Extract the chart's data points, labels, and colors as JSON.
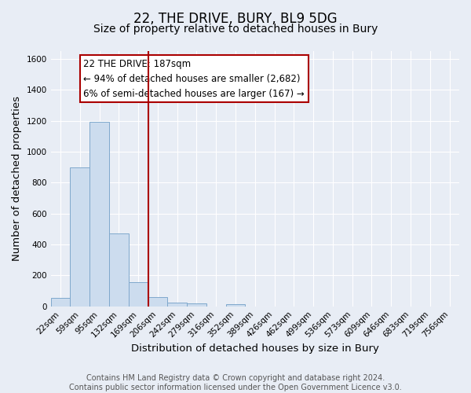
{
  "title": "22, THE DRIVE, BURY, BL9 5DG",
  "subtitle": "Size of property relative to detached houses in Bury",
  "xlabel": "Distribution of detached houses by size in Bury",
  "ylabel": "Number of detached properties",
  "bin_labels": [
    "22sqm",
    "59sqm",
    "95sqm",
    "132sqm",
    "169sqm",
    "206sqm",
    "242sqm",
    "279sqm",
    "316sqm",
    "352sqm",
    "389sqm",
    "426sqm",
    "462sqm",
    "499sqm",
    "536sqm",
    "573sqm",
    "609sqm",
    "646sqm",
    "683sqm",
    "719sqm",
    "756sqm"
  ],
  "bar_values": [
    55,
    900,
    1195,
    470,
    155,
    60,
    25,
    20,
    0,
    15,
    0,
    0,
    0,
    0,
    0,
    0,
    0,
    0,
    0,
    0,
    0
  ],
  "ylim": [
    0,
    1650
  ],
  "yticks": [
    0,
    200,
    400,
    600,
    800,
    1000,
    1200,
    1400,
    1600
  ],
  "bar_color": "#ccdcee",
  "bar_edge_color": "#7fa8cc",
  "background_color": "#e8edf5",
  "vline_x_index": 5,
  "vline_color": "#aa0000",
  "annotation_title": "22 THE DRIVE: 187sqm",
  "annotation_line1": "← 94% of detached houses are smaller (2,682)",
  "annotation_line2": "6% of semi-detached houses are larger (167) →",
  "footer_line1": "Contains HM Land Registry data © Crown copyright and database right 2024.",
  "footer_line2": "Contains public sector information licensed under the Open Government Licence v3.0.",
  "title_fontsize": 12,
  "subtitle_fontsize": 10,
  "axis_label_fontsize": 9.5,
  "tick_fontsize": 7.5,
  "annotation_fontsize": 8.5,
  "footer_fontsize": 7
}
